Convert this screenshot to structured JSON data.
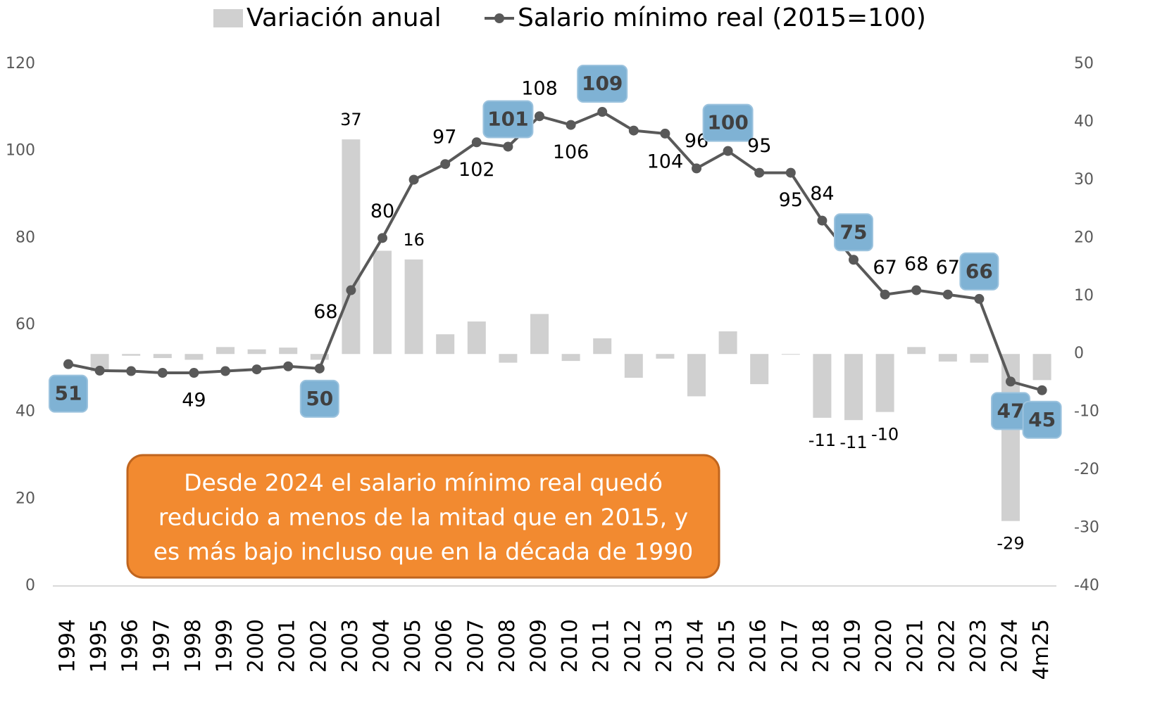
{
  "chart_data": {
    "type": "bar_line",
    "categories": [
      "1994",
      "1995",
      "1996",
      "1997",
      "1998",
      "1999",
      "2000",
      "2001",
      "2002",
      "2003",
      "2004",
      "2005",
      "2006",
      "2007",
      "2008",
      "2009",
      "2010",
      "2011",
      "2012",
      "2013",
      "2014",
      "2015",
      "2016",
      "2017",
      "2018",
      "2019",
      "2020",
      "2021",
      "2022",
      "2023",
      "2024",
      "4m25"
    ],
    "series": [
      {
        "name": "Variación anual",
        "type": "bar",
        "axis": "y2",
        "color": "#d0d0d0",
        "values": [
          null,
          -3,
          -0.3,
          -0.7,
          -1,
          1.2,
          0.8,
          1.1,
          -1,
          37,
          17.8,
          16.3,
          3.4,
          5.6,
          -1.5,
          6.9,
          -1.2,
          2.7,
          -4.1,
          -0.8,
          -7.3,
          3.9,
          -5.2,
          -0.1,
          -11,
          -11.4,
          -10,
          1.2,
          -1.3,
          -1.5,
          -28.8,
          -4.5
        ],
        "value_labels": [
          null,
          null,
          null,
          null,
          null,
          null,
          null,
          null,
          null,
          "37",
          null,
          "16",
          null,
          null,
          null,
          null,
          null,
          null,
          null,
          null,
          null,
          null,
          null,
          null,
          "-11",
          "-11",
          "-10",
          null,
          null,
          null,
          "-29",
          null
        ]
      },
      {
        "name": "Salario mínimo real (2015=100)",
        "type": "line",
        "axis": "y",
        "color": "#595959",
        "values": [
          51,
          49.5,
          49.4,
          49,
          49,
          49.4,
          49.8,
          50.5,
          50,
          68,
          80,
          93.4,
          97,
          102,
          101,
          108,
          106,
          109,
          104.7,
          104,
          96,
          100,
          95,
          95,
          84,
          75,
          67,
          68,
          67,
          66,
          47,
          45
        ],
        "value_labels": [
          "51",
          null,
          null,
          null,
          "49",
          null,
          null,
          null,
          "50",
          "68",
          "80",
          null,
          "97",
          "102",
          "101",
          "108",
          "106",
          "109",
          null,
          "104",
          "96",
          "100",
          "95",
          "95",
          "84",
          "75",
          "67",
          "68",
          "67",
          "66",
          "47",
          "45"
        ],
        "highlighted": [
          0,
          8,
          14,
          17,
          21,
          25,
          29,
          30,
          31
        ],
        "highlight_color": "#7fb2d4"
      }
    ],
    "ylim": [
      0,
      120
    ],
    "yticks": [
      0,
      20,
      40,
      60,
      80,
      100,
      120
    ],
    "y2lim": [
      -40,
      50
    ],
    "y2ticks": [
      -40,
      -30,
      -20,
      -10,
      0,
      10,
      20,
      30,
      40,
      50
    ],
    "grid": false,
    "legend": "top",
    "annotation": {
      "lines": [
        "Desde 2024 el salario mínimo real quedó",
        "reducido a menos de la mitad que en 2015, y",
        "es más bajo incluso que en la década de 1990"
      ],
      "color": "#f28a30"
    }
  }
}
